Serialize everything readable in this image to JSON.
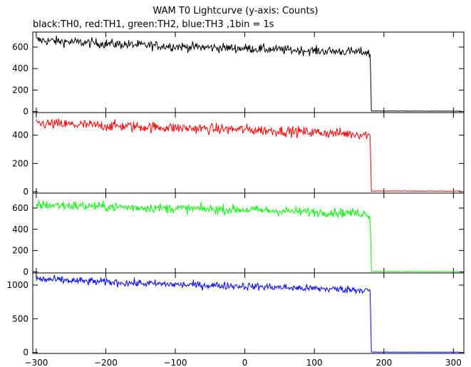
{
  "title": "WAM T0 Lightcurve (y-axis: Counts)",
  "subtitle": "black:TH0, red:TH1, green:TH2, blue:TH3 ,1bin = 1s",
  "chart_data": [
    {
      "type": "line",
      "name": "TH0",
      "color": "#000000",
      "xlim": [
        -305,
        315
      ],
      "ylim": [
        -10,
        740
      ],
      "yticks": [
        0,
        200,
        400,
        600
      ],
      "cutoff_x": 181,
      "points": [
        [
          -300,
          665
        ],
        [
          -250,
          648
        ],
        [
          -200,
          632
        ],
        [
          -150,
          618
        ],
        [
          -100,
          606
        ],
        [
          -50,
          596
        ],
        [
          0,
          588
        ],
        [
          50,
          576
        ],
        [
          100,
          565
        ],
        [
          150,
          558
        ],
        [
          175,
          552
        ],
        [
          180,
          530
        ],
        [
          181,
          340
        ],
        [
          182,
          5
        ],
        [
          310,
          3
        ]
      ]
    },
    {
      "type": "line",
      "name": "TH1",
      "color": "#ff0000",
      "xlim": [
        -305,
        315
      ],
      "ylim": [
        -10,
        560
      ],
      "yticks": [
        0,
        200,
        400
      ],
      "cutoff_x": 181,
      "points": [
        [
          -300,
          482
        ],
        [
          -250,
          475
        ],
        [
          -200,
          467
        ],
        [
          -150,
          460
        ],
        [
          -100,
          452
        ],
        [
          -50,
          445
        ],
        [
          0,
          440
        ],
        [
          50,
          430
        ],
        [
          100,
          420
        ],
        [
          150,
          410
        ],
        [
          175,
          405
        ],
        [
          180,
          390
        ],
        [
          181,
          240
        ],
        [
          182,
          5
        ],
        [
          310,
          4
        ]
      ]
    },
    {
      "type": "line",
      "name": "TH2",
      "color": "#00ff00",
      "xlim": [
        -305,
        315
      ],
      "ylim": [
        -10,
        740
      ],
      "yticks": [
        0,
        200,
        400,
        600
      ],
      "cutoff_x": 181,
      "points": [
        [
          -300,
          630
        ],
        [
          -250,
          622
        ],
        [
          -200,
          612
        ],
        [
          -150,
          604
        ],
        [
          -100,
          596
        ],
        [
          -50,
          590
        ],
        [
          0,
          584
        ],
        [
          50,
          572
        ],
        [
          100,
          562
        ],
        [
          150,
          554
        ],
        [
          175,
          548
        ],
        [
          180,
          520
        ],
        [
          181,
          330
        ],
        [
          182,
          5
        ],
        [
          310,
          3
        ]
      ]
    },
    {
      "type": "line",
      "name": "TH3",
      "color": "#0000ff",
      "xlim": [
        -305,
        315
      ],
      "ylim": [
        -15,
        1180
      ],
      "yticks": [
        0,
        500,
        1000
      ],
      "cutoff_x": 181,
      "points": [
        [
          -300,
          1090
        ],
        [
          -250,
          1065
        ],
        [
          -200,
          1045
        ],
        [
          -150,
          1025
        ],
        [
          -100,
          1008
        ],
        [
          -50,
          995
        ],
        [
          0,
          985
        ],
        [
          50,
          965
        ],
        [
          100,
          948
        ],
        [
          150,
          935
        ],
        [
          175,
          928
        ],
        [
          180,
          900
        ],
        [
          181,
          560
        ],
        [
          182,
          5
        ],
        [
          310,
          4
        ]
      ]
    }
  ],
  "x_axis": {
    "ticks": [
      -300,
      -200,
      -100,
      0,
      100,
      200,
      300
    ],
    "labels": [
      "−300",
      "−200",
      "−100",
      "0",
      "100",
      "200",
      "300"
    ]
  }
}
